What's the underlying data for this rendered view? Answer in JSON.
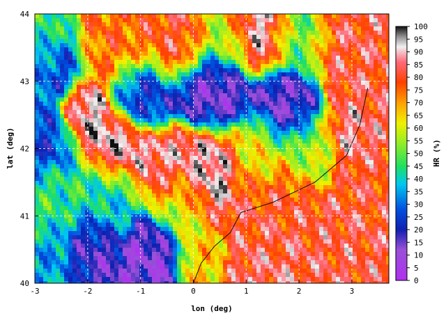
{
  "chart_data": {
    "type": "heatmap",
    "title": "",
    "xlabel": "lon (deg)",
    "ylabel": "lat (deg)",
    "xlim": [
      -3,
      3.7
    ],
    "ylim": [
      40,
      44
    ],
    "x_ticks": [
      -3,
      -2,
      -1,
      0,
      1,
      2,
      3
    ],
    "x_tick_labels": [
      "-3",
      "-2",
      "-1",
      "0",
      "1",
      "2",
      "3"
    ],
    "y_ticks": [
      40,
      41,
      42,
      43,
      44
    ],
    "y_tick_labels": [
      "40",
      "41",
      "42",
      "43",
      "44"
    ],
    "grid": true,
    "colorbar": {
      "label": "HR (%)",
      "range": [
        0,
        100
      ],
      "ticks": [
        0,
        5,
        10,
        15,
        20,
        25,
        30,
        35,
        40,
        45,
        50,
        55,
        60,
        65,
        70,
        75,
        80,
        85,
        90,
        95,
        100
      ],
      "tick_labels": [
        "0",
        "5",
        "10",
        "15",
        "20",
        "25",
        "30",
        "35",
        "40",
        "45",
        "50",
        "55",
        "60",
        "65",
        "70",
        "75",
        "80",
        "85",
        "90",
        "95",
        "100"
      ],
      "stops": [
        {
          "v": 0,
          "c": "#b030f0"
        },
        {
          "v": 12,
          "c": "#9a50d8"
        },
        {
          "v": 20,
          "c": "#1020b0"
        },
        {
          "v": 28,
          "c": "#0050e0"
        },
        {
          "v": 38,
          "c": "#00c8f0"
        },
        {
          "v": 45,
          "c": "#20e060"
        },
        {
          "v": 55,
          "c": "#a0ee20"
        },
        {
          "v": 62,
          "c": "#f0f000"
        },
        {
          "v": 70,
          "c": "#ffa000"
        },
        {
          "v": 78,
          "c": "#ff4000"
        },
        {
          "v": 86,
          "c": "#ff6a7a"
        },
        {
          "v": 92,
          "c": "#f0f0f0"
        },
        {
          "v": 96,
          "c": "#909090"
        },
        {
          "v": 100,
          "c": "#101010"
        }
      ]
    },
    "field_regions": [
      {
        "lon": -3.0,
        "lat": 43.7,
        "value": 45,
        "spread": 0.5
      },
      {
        "lon": -2.6,
        "lat": 43.2,
        "value": 25,
        "spread": 0.35
      },
      {
        "lon": -1.4,
        "lat": 43.6,
        "value": 75,
        "spread": 0.5
      },
      {
        "lon": -0.3,
        "lat": 43.7,
        "value": 80,
        "spread": 0.45
      },
      {
        "lon": 0.6,
        "lat": 43.7,
        "value": 55,
        "spread": 0.4
      },
      {
        "lon": 1.2,
        "lat": 43.85,
        "value": 93,
        "spread": 0.45
      },
      {
        "lon": 2.0,
        "lat": 43.7,
        "value": 50,
        "spread": 0.4
      },
      {
        "lon": 3.0,
        "lat": 43.6,
        "value": 82,
        "spread": 0.5
      },
      {
        "lon": 3.4,
        "lat": 43.0,
        "value": 82,
        "spread": 0.5
      },
      {
        "lon": -1.0,
        "lat": 42.8,
        "value": 22,
        "spread": 0.4
      },
      {
        "lon": 0.4,
        "lat": 42.85,
        "value": 13,
        "spread": 0.45
      },
      {
        "lon": 1.8,
        "lat": 42.6,
        "value": 14,
        "spread": 0.4
      },
      {
        "lon": -2.0,
        "lat": 42.5,
        "value": 92,
        "spread": 0.35
      },
      {
        "lon": -2.7,
        "lat": 42.1,
        "value": 25,
        "spread": 0.35
      },
      {
        "lon": -1.4,
        "lat": 42.0,
        "value": 94,
        "spread": 0.4
      },
      {
        "lon": -0.6,
        "lat": 41.7,
        "value": 88,
        "spread": 0.4
      },
      {
        "lon": 0.3,
        "lat": 41.7,
        "value": 93,
        "spread": 0.45
      },
      {
        "lon": 1.2,
        "lat": 41.9,
        "value": 60,
        "spread": 0.4
      },
      {
        "lon": 2.2,
        "lat": 42.0,
        "value": 55,
        "spread": 0.4
      },
      {
        "lon": 3.0,
        "lat": 42.2,
        "value": 88,
        "spread": 0.35
      },
      {
        "lon": -2.4,
        "lat": 41.2,
        "value": 45,
        "spread": 0.5
      },
      {
        "lon": -1.5,
        "lat": 41.3,
        "value": 40,
        "spread": 0.4
      },
      {
        "lon": -0.3,
        "lat": 41.2,
        "value": 60,
        "spread": 0.4
      },
      {
        "lon": -2.0,
        "lat": 40.6,
        "value": 15,
        "spread": 0.35
      },
      {
        "lon": -0.8,
        "lat": 40.55,
        "value": 12,
        "spread": 0.35
      },
      {
        "lon": -2.8,
        "lat": 40.3,
        "value": 35,
        "spread": 0.4
      },
      {
        "lon": 0.2,
        "lat": 40.4,
        "value": 65,
        "spread": 0.3
      },
      {
        "lon": 1.5,
        "lat": 41.0,
        "value": 80,
        "spread": 0.6
      },
      {
        "lon": 2.8,
        "lat": 40.5,
        "value": 82,
        "spread": 0.6
      },
      {
        "lon": 3.5,
        "lat": 41.5,
        "value": 80,
        "spread": 0.5
      },
      {
        "lon": 1.5,
        "lat": 40.2,
        "value": 85,
        "spread": 0.5
      }
    ]
  }
}
